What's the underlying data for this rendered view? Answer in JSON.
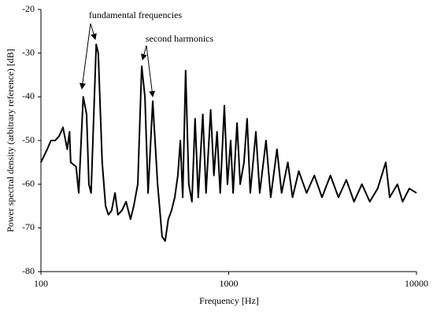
{
  "chart_data": {
    "type": "line",
    "xscale": "log",
    "xlabel": "Frequency [Hz]",
    "ylabel": "Power spectral density (arbitrary reference) [dB]",
    "annotations": [
      "fundamental frequencies",
      "second harmonics"
    ],
    "xlim": [
      100,
      10000
    ],
    "xticks": [
      100,
      1000,
      10000
    ],
    "ylim": [
      -80,
      -20
    ],
    "yticks": [
      -80,
      -70,
      -60,
      -50,
      -40,
      -30,
      -20
    ],
    "series": [
      {
        "name": "Power spectral density",
        "color": "#000000",
        "x": [
          100,
          108,
          113,
          119,
          125,
          131,
          138,
          142,
          144,
          154,
          159,
          168,
          175,
          180,
          185,
          197,
          202,
          212,
          221,
          229,
          238,
          248,
          257,
          270,
          284,
          300,
          312,
          328,
          344,
          358,
          372,
          394,
          418,
          442,
          459,
          477,
          496,
          516,
          536,
          553,
          569,
          590,
          613,
          637,
          662,
          688,
          728,
          757,
          802,
          834,
          867,
          901,
          948,
          985,
          1024,
          1056,
          1108,
          1151,
          1206,
          1253,
          1303,
          1395,
          1463,
          1581,
          1675,
          1807,
          1914,
          2065,
          2187,
          2362,
          2597,
          2858,
          3140,
          3480,
          3840,
          4230,
          4650,
          5120,
          5640,
          6210,
          6860,
          7200,
          7920,
          8440,
          9160,
          10000
        ],
        "values": [
          -55,
          -52,
          -50,
          -50,
          -49,
          -47,
          -52,
          -48,
          -55,
          -56,
          -62,
          -40,
          -44,
          -60,
          -62,
          -28,
          -30,
          -55,
          -65,
          -67,
          -66,
          -62,
          -67,
          -66,
          -64,
          -68,
          -65,
          -60,
          -33,
          -40,
          -62,
          -41,
          -60,
          -72,
          -73,
          -68,
          -66,
          -63,
          -58,
          -50,
          -63,
          -34,
          -60,
          -64,
          -45,
          -63,
          -44,
          -62,
          -43,
          -58,
          -48,
          -62,
          -42,
          -60,
          -50,
          -62,
          -46,
          -60,
          -55,
          -45,
          -62,
          -48,
          -62,
          -50,
          -63,
          -52,
          -62,
          -55,
          -63,
          -57,
          -62,
          -58,
          -63,
          -58,
          -63,
          -59,
          -64,
          -60,
          -64,
          -61,
          -55,
          -63,
          -60,
          -64,
          -61,
          -62
        ]
      }
    ]
  }
}
